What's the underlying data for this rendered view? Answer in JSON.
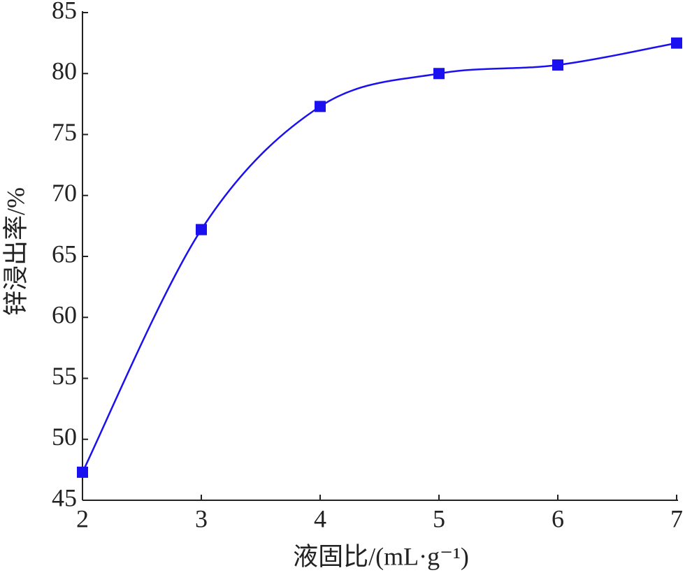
{
  "chart_data": {
    "type": "line",
    "x": [
      2,
      3,
      4,
      5,
      6,
      7
    ],
    "series": [
      {
        "name": "锌浸出率",
        "color": "#1a10f0",
        "values": [
          47.3,
          67.2,
          77.3,
          80.0,
          80.7,
          82.5
        ]
      }
    ],
    "xlim": [
      2,
      7
    ],
    "xticks": [
      2,
      3,
      4,
      5,
      6,
      7
    ],
    "ylim": [
      45,
      85
    ],
    "yticks": [
      45,
      50,
      55,
      60,
      65,
      70,
      75,
      80,
      85
    ],
    "xlabel": "液固比/(mL·g⁻¹)",
    "ylabel": "锌浸出率/%"
  }
}
